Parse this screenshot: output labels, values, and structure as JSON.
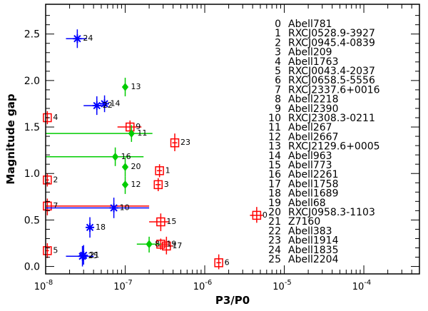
{
  "chart_data": {
    "type": "scatter",
    "title": "",
    "xlabel": "P3/P0",
    "ylabel": "Magnitude gap",
    "xscale": "log",
    "xlim": [
      1e-08,
      0.0005
    ],
    "ylim": [
      -0.08,
      2.82
    ],
    "x_ticks": [
      {
        "value": 1e-08,
        "base": "10",
        "exp": "-8"
      },
      {
        "value": 1e-07,
        "base": "10",
        "exp": "-7"
      },
      {
        "value": 1e-06,
        "base": "10",
        "exp": "-6"
      },
      {
        "value": 1e-05,
        "base": "10",
        "exp": "-5"
      },
      {
        "value": 0.0001,
        "base": "10",
        "exp": "-4"
      }
    ],
    "y_ticks": [
      "0.0",
      "0.5",
      "1.0",
      "1.5",
      "2.0",
      "2.5"
    ],
    "colors": {
      "square": "#ff0000",
      "diamond": "#00cc00",
      "star": "#0000ff",
      "axis": "#000000"
    },
    "legend_position": "right",
    "legend": [
      {
        "id": "0",
        "name": "Abell781"
      },
      {
        "id": "1",
        "name": "RXCJ0528.9-3927"
      },
      {
        "id": "2",
        "name": "RXCJ0945.4-0839"
      },
      {
        "id": "3",
        "name": "Abell209"
      },
      {
        "id": "4",
        "name": "Abell1763"
      },
      {
        "id": "5",
        "name": "RXCJ0043.4-2037"
      },
      {
        "id": "6",
        "name": "RXCJ0658.5-5556"
      },
      {
        "id": "7",
        "name": "RXCJ2337.6+0016"
      },
      {
        "id": "8",
        "name": "Abell2218"
      },
      {
        "id": "9",
        "name": "Abell2390"
      },
      {
        "id": "10",
        "name": "RXCJ2308.3-0211"
      },
      {
        "id": "11",
        "name": "Abell267"
      },
      {
        "id": "12",
        "name": "Abell2667"
      },
      {
        "id": "13",
        "name": "RXCJ2129.6+0005"
      },
      {
        "id": "14",
        "name": "Abell963"
      },
      {
        "id": "15",
        "name": "Abell773"
      },
      {
        "id": "16",
        "name": "Abell2261"
      },
      {
        "id": "17",
        "name": "Abell1758"
      },
      {
        "id": "18",
        "name": "Abell1689"
      },
      {
        "id": "19",
        "name": "Abell68"
      },
      {
        "id": "20",
        "name": "RXCJ0958.3-1103"
      },
      {
        "id": "21",
        "name": "Z7160"
      },
      {
        "id": "22",
        "name": "Abell383"
      },
      {
        "id": "23",
        "name": "Abell1914"
      },
      {
        "id": "24",
        "name": "Abell1835"
      },
      {
        "id": "25",
        "name": "Abell2204"
      }
    ],
    "series": [
      {
        "name": "red squares",
        "marker": "square",
        "color": "#ff0000",
        "points": [
          {
            "label": "0",
            "x": 4.5e-06,
            "y": 0.55,
            "xlo": 3.7e-06,
            "xhi": 5.4e-06,
            "ylo": 0.47,
            "yhi": 0.64
          },
          {
            "label": "1",
            "x": 2.7e-07,
            "y": 1.03,
            "xlo": 2.5e-07,
            "xhi": 2.9e-07,
            "ylo": 0.96,
            "yhi": 1.1
          },
          {
            "label": "2",
            "x": 1.05e-08,
            "y": 0.93,
            "xlo": 1e-08,
            "xhi": 1.1e-08,
            "ylo": 0.86,
            "yhi": 1.0
          },
          {
            "label": "3",
            "x": 2.6e-07,
            "y": 0.88,
            "xlo": 2.4e-07,
            "xhi": 2.8e-07,
            "ylo": 0.81,
            "yhi": 0.95
          },
          {
            "label": "4",
            "x": 1.05e-08,
            "y": 1.6,
            "xlo": 1e-08,
            "xhi": 1.1e-08,
            "ylo": 1.53,
            "yhi": 1.67
          },
          {
            "label": "5",
            "x": 1.05e-08,
            "y": 0.17,
            "xlo": 1e-08,
            "xhi": 1.1e-08,
            "ylo": 0.09,
            "yhi": 0.25
          },
          {
            "label": "6",
            "x": 1.5e-06,
            "y": 0.04,
            "xlo": 1.4e-06,
            "xhi": 1.6e-06,
            "ylo": -0.03,
            "yhi": 0.13
          },
          {
            "label": "7",
            "x": 1.05e-08,
            "y": 0.65,
            "xlo": 1e-08,
            "xhi": 2e-07,
            "ylo": 0.55,
            "yhi": 0.73
          },
          {
            "label": "9",
            "x": 1.15e-07,
            "y": 1.5,
            "xlo": 8e-08,
            "xhi": 1.6e-07,
            "ylo": 1.44,
            "yhi": 1.57
          },
          {
            "label": "15",
            "x": 2.8e-07,
            "y": 0.48,
            "xlo": 2e-07,
            "xhi": 3.6e-07,
            "ylo": 0.38,
            "yhi": 0.57
          },
          {
            "label": "17",
            "x": 3.3e-07,
            "y": 0.22,
            "xlo": 2.6e-07,
            "xhi": 4e-07,
            "ylo": 0.13,
            "yhi": 0.32
          },
          {
            "label": "19",
            "x": 2.8e-07,
            "y": 0.24,
            "xlo": 1.7e-07,
            "xhi": 3.6e-07,
            "ylo": 0.18,
            "yhi": 0.3
          },
          {
            "label": "23",
            "x": 4.2e-07,
            "y": 1.33,
            "xlo": 3.9e-07,
            "xhi": 4.5e-07,
            "ylo": 1.24,
            "yhi": 1.43
          }
        ]
      },
      {
        "name": "green diamonds",
        "marker": "diamond",
        "color": "#00cc00",
        "points": [
          {
            "label": "8",
            "x": 2e-07,
            "y": 0.24,
            "xlo": 1.4e-07,
            "xhi": 2.8e-07,
            "ylo": 0.15,
            "yhi": 0.32
          },
          {
            "label": "11",
            "x": 1.2e-07,
            "y": 1.43,
            "xlo": 1e-08,
            "xhi": 2.2e-07,
            "ylo": 1.34,
            "yhi": 1.52
          },
          {
            "label": "12",
            "x": 1e-07,
            "y": 0.88,
            "xlo": 9.3e-08,
            "xhi": 1.07e-07,
            "ylo": 0.78,
            "yhi": 0.97
          },
          {
            "label": "13",
            "x": 1e-07,
            "y": 1.93,
            "xlo": 9.3e-08,
            "xhi": 1.07e-07,
            "ylo": 1.83,
            "yhi": 2.03
          },
          {
            "label": "16",
            "x": 7.5e-08,
            "y": 1.18,
            "xlo": 1e-08,
            "xhi": 1.7e-07,
            "ylo": 1.08,
            "yhi": 1.28
          },
          {
            "label": "20",
            "x": 1e-07,
            "y": 1.07,
            "xlo": 9.3e-08,
            "xhi": 1.07e-07,
            "ylo": 0.97,
            "yhi": 1.17
          }
        ]
      },
      {
        "name": "blue stars",
        "marker": "star",
        "color": "#0000ff",
        "points": [
          {
            "label": "10",
            "x": 7.2e-08,
            "y": 0.63,
            "xlo": 1e-08,
            "xhi": 2e-07,
            "ylo": 0.52,
            "yhi": 0.74
          },
          {
            "label": "14",
            "x": 5.5e-08,
            "y": 1.75,
            "xlo": 4.8e-08,
            "xhi": 6.3e-08,
            "ylo": 1.66,
            "yhi": 1.84
          },
          {
            "label": "18",
            "x": 3.6e-08,
            "y": 0.42,
            "xlo": 3.3e-08,
            "xhi": 4e-08,
            "ylo": 0.31,
            "yhi": 0.53
          },
          {
            "label": "21",
            "x": 3e-08,
            "y": 0.12,
            "xlo": 2.7e-08,
            "xhi": 3.3e-08,
            "ylo": 0.02,
            "yhi": 0.23
          },
          {
            "label": "22",
            "x": 4.4e-08,
            "y": 1.73,
            "xlo": 3e-08,
            "xhi": 6e-08,
            "ylo": 1.63,
            "yhi": 1.83
          },
          {
            "label": "24",
            "x": 2.5e-08,
            "y": 2.45,
            "xlo": 1.8e-08,
            "xhi": 3.3e-08,
            "ylo": 2.35,
            "yhi": 2.55
          },
          {
            "label": "25",
            "x": 2.9e-08,
            "y": 0.11,
            "xlo": 1.8e-08,
            "xhi": 4e-08,
            "ylo": 0.0,
            "yhi": 0.22
          }
        ]
      }
    ]
  }
}
